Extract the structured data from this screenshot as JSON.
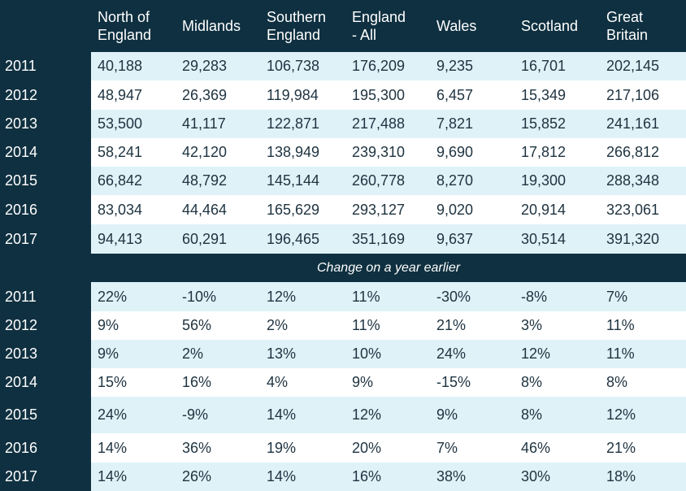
{
  "chart_data": {
    "type": "table",
    "columns": [
      "",
      "North of England",
      "Midlands",
      "Southern England",
      "England - All",
      "Wales",
      "Scotland",
      "Great Britain"
    ],
    "header_lines": [
      [
        "North of",
        "England"
      ],
      [
        "Midlands"
      ],
      [
        "Southern",
        "England"
      ],
      [
        "England",
        "- All"
      ],
      [
        "Wales"
      ],
      [
        "Scotland"
      ],
      [
        "Great",
        "Britain"
      ]
    ],
    "values": [
      {
        "year": "2011",
        "cells": [
          "40,188",
          "29,283",
          "106,738",
          "176,209",
          "9,235",
          "16,701",
          "202,145"
        ]
      },
      {
        "year": "2012",
        "cells": [
          "48,947",
          "26,369",
          "119,984",
          "195,300",
          "6,457",
          "15,349",
          "217,106"
        ]
      },
      {
        "year": "2013",
        "cells": [
          "53,500",
          "41,117",
          "122,871",
          "217,488",
          "7,821",
          "15,852",
          "241,161"
        ]
      },
      {
        "year": "2014",
        "cells": [
          "58,241",
          "42,120",
          "138,949",
          "239,310",
          "9,690",
          "17,812",
          "266,812"
        ]
      },
      {
        "year": "2015",
        "cells": [
          "66,842",
          "48,792",
          "145,144",
          "260,778",
          "8,270",
          "19,300",
          "288,348"
        ]
      },
      {
        "year": "2016",
        "cells": [
          "83,034",
          "44,464",
          "165,629",
          "293,127",
          "9,020",
          "20,914",
          "323,061"
        ]
      },
      {
        "year": "2017",
        "cells": [
          "94,413",
          "60,291",
          "196,465",
          "351,169",
          "9,637",
          "30,514",
          "391,320"
        ]
      }
    ],
    "section_label": "Change on a year earlier",
    "changes": [
      {
        "year": "2011",
        "cells": [
          "22%",
          "-10%",
          "12%",
          "11%",
          "-30%",
          "-8%",
          "7%"
        ]
      },
      {
        "year": "2012",
        "cells": [
          "9%",
          "56%",
          "2%",
          "11%",
          "21%",
          "3%",
          "11%"
        ]
      },
      {
        "year": "2013",
        "cells": [
          "9%",
          "2%",
          "13%",
          "10%",
          "24%",
          "12%",
          "11%"
        ]
      },
      {
        "year": "2014",
        "cells": [
          "15%",
          "16%",
          "4%",
          "9%",
          "-15%",
          "8%",
          "8%"
        ]
      },
      {
        "year": "2015",
        "cells": [
          "24%",
          "-9%",
          "14%",
          "12%",
          "9%",
          "8%",
          "12%"
        ]
      },
      {
        "year": "2016",
        "cells": [
          "14%",
          "36%",
          "19%",
          "20%",
          "7%",
          "46%",
          "21%"
        ]
      },
      {
        "year": "2017",
        "cells": [
          "14%",
          "26%",
          "14%",
          "16%",
          "38%",
          "30%",
          "18%"
        ]
      }
    ]
  },
  "colors": {
    "header_bg": "#0f3040",
    "row_light": "#dff2f8",
    "row_white": "#ffffff",
    "text": "#1e3340"
  }
}
